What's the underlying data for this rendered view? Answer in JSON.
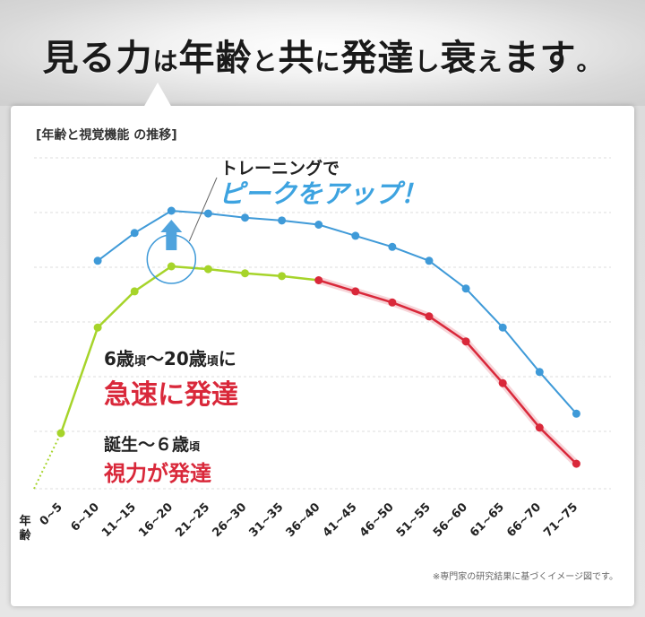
{
  "headline": {
    "parts": [
      "見る",
      "力",
      "は",
      "年齢",
      "と",
      "共",
      "に",
      "発達",
      "し",
      "衰",
      "え",
      "ます",
      "。"
    ],
    "small_indexes": [
      2,
      4,
      6,
      8,
      10,
      12
    ]
  },
  "subtitle": "[年齢と視覚機能 の推移]",
  "footnote": "※専門家の研究結果に基づくイメージ図です。",
  "colors": {
    "blue": "#3f9ad8",
    "green": "#a6d42a",
    "red": "#d9283a",
    "grid": "#dddddd",
    "callout_blue": "#3da3e0"
  },
  "chart_data": {
    "type": "line",
    "title": "年齢と視覚機能 の推移",
    "xlabel": "年齢",
    "ylabel": "",
    "categories": [
      "0~5",
      "6~10",
      "11~15",
      "16~20",
      "21~25",
      "26~30",
      "31~35",
      "36~40",
      "41~45",
      "46~50",
      "51~55",
      "56~60",
      "61~65",
      "66~70",
      "71~75"
    ],
    "ylim": [
      0,
      100
    ],
    "start_value": 0,
    "series": [
      {
        "name": "トレーニングでピークをアップ!",
        "color": "blue",
        "values": [
          null,
          82,
          92,
          100,
          99,
          97.5,
          96.5,
          95,
          91,
          87,
          82,
          72,
          58,
          42,
          27
        ]
      },
      {
        "name": "視覚機能",
        "values": [
          20,
          58,
          71,
          80,
          79,
          77.5,
          76.5,
          75,
          71,
          67,
          62,
          53,
          38,
          22,
          9
        ]
      }
    ],
    "segments": [
      {
        "series": 1,
        "from": 0,
        "to": 7,
        "color": "green"
      },
      {
        "series": 1,
        "from": 7,
        "to": 14,
        "color": "red"
      }
    ],
    "annotations": {
      "training": {
        "line1": "トレーニングで",
        "line2": "ピークをアップ！"
      },
      "rapid": {
        "line1_a": "6歳",
        "line1_b": "頃",
        "line1_c": "〜20歳",
        "line1_d": "頃",
        "line1_e": "に",
        "line2": "急速に発達"
      },
      "birth": {
        "line1_a": "誕生〜６歳",
        "line1_b": "頃",
        "line2": "視力が発達"
      }
    },
    "axis_label_chars": [
      "年",
      "齢"
    ]
  }
}
